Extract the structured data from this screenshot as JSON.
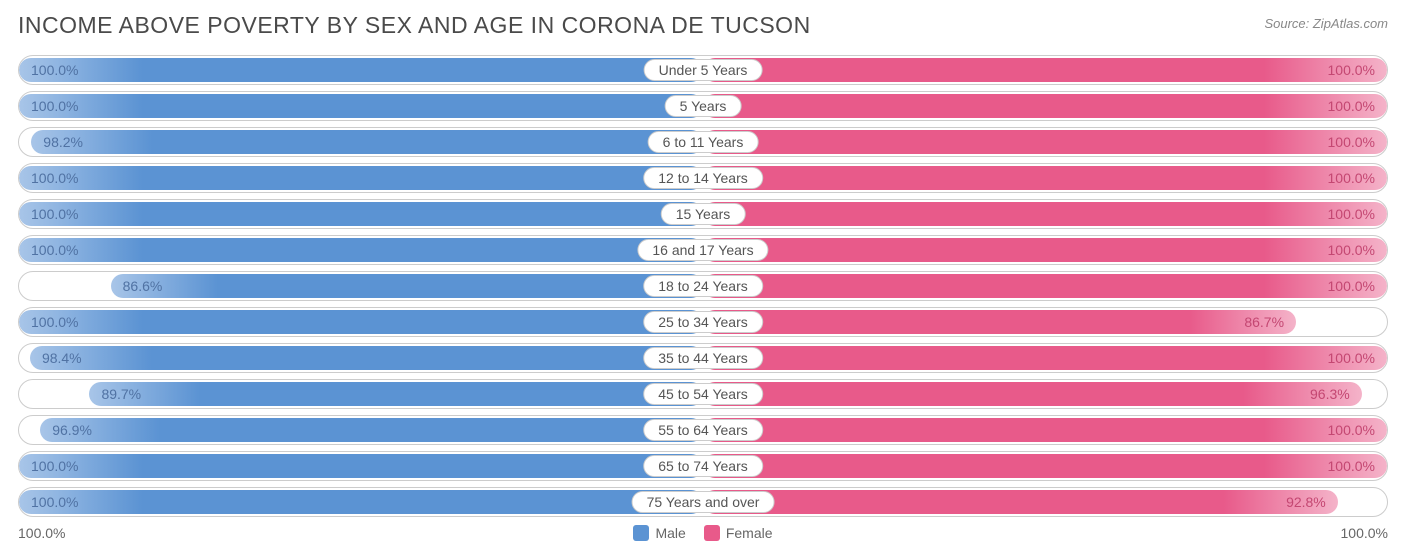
{
  "chart": {
    "type": "diverging-bar",
    "title": "INCOME ABOVE POVERTY BY SEX AND AGE IN CORONA DE TUCSON",
    "source": "Source: ZipAtlas.com",
    "male_color": "#5b93d3",
    "male_light": "#a8c5e8",
    "female_color": "#e85a8a",
    "female_light": "#f4b3c9",
    "label_text_color": "#555555",
    "value_text_color": "#5072a3",
    "value_text_color_f": "#c44772",
    "border_color": "#cccccc",
    "background": "#ffffff",
    "axis_min_label": "100.0%",
    "axis_max_label": "100.0%",
    "legend": {
      "male": "Male",
      "female": "Female"
    },
    "rows": [
      {
        "category": "Under 5 Years",
        "male": 100.0,
        "female": 100.0,
        "male_label": "100.0%",
        "female_label": "100.0%"
      },
      {
        "category": "5 Years",
        "male": 100.0,
        "female": 100.0,
        "male_label": "100.0%",
        "female_label": "100.0%"
      },
      {
        "category": "6 to 11 Years",
        "male": 98.2,
        "female": 100.0,
        "male_label": "98.2%",
        "female_label": "100.0%"
      },
      {
        "category": "12 to 14 Years",
        "male": 100.0,
        "female": 100.0,
        "male_label": "100.0%",
        "female_label": "100.0%"
      },
      {
        "category": "15 Years",
        "male": 100.0,
        "female": 100.0,
        "male_label": "100.0%",
        "female_label": "100.0%"
      },
      {
        "category": "16 and 17 Years",
        "male": 100.0,
        "female": 100.0,
        "male_label": "100.0%",
        "female_label": "100.0%"
      },
      {
        "category": "18 to 24 Years",
        "male": 86.6,
        "female": 100.0,
        "male_label": "86.6%",
        "female_label": "100.0%"
      },
      {
        "category": "25 to 34 Years",
        "male": 100.0,
        "female": 86.7,
        "male_label": "100.0%",
        "female_label": "86.7%"
      },
      {
        "category": "35 to 44 Years",
        "male": 98.4,
        "female": 100.0,
        "male_label": "98.4%",
        "female_label": "100.0%"
      },
      {
        "category": "45 to 54 Years",
        "male": 89.7,
        "female": 96.3,
        "male_label": "89.7%",
        "female_label": "96.3%"
      },
      {
        "category": "55 to 64 Years",
        "male": 96.9,
        "female": 100.0,
        "male_label": "96.9%",
        "female_label": "100.0%"
      },
      {
        "category": "65 to 74 Years",
        "male": 100.0,
        "female": 100.0,
        "male_label": "100.0%",
        "female_label": "100.0%"
      },
      {
        "category": "75 Years and over",
        "male": 100.0,
        "female": 92.8,
        "male_label": "100.0%",
        "female_label": "92.8%"
      }
    ]
  }
}
